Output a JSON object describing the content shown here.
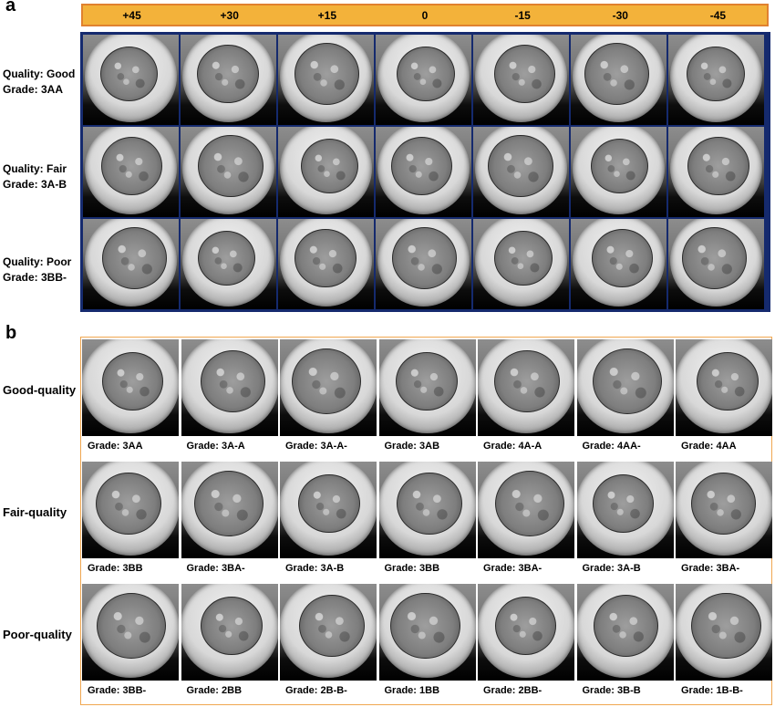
{
  "panel_a": {
    "letter": "a",
    "angles": [
      "+45",
      "+30",
      "+15",
      "0",
      "-15",
      "-30",
      "-45"
    ],
    "rows": [
      {
        "quality": "Quality: Good",
        "grade": "Grade: 3AA"
      },
      {
        "quality": "Quality: Fair",
        "grade": "Grade: 3A-B"
      },
      {
        "quality": "Quality: Poor",
        "grade": "Grade: 3BB-"
      }
    ]
  },
  "panel_b": {
    "letter": "b",
    "rows": [
      {
        "label": "Good-quality",
        "grades": [
          "Grade: 3AA",
          "Grade: 3A-A",
          "Grade: 3A-A-",
          "Grade: 3AB",
          "Grade: 4A-A",
          "Grade: 4AA-",
          "Grade: 4AA"
        ]
      },
      {
        "label": "Fair-quality",
        "grades": [
          "Grade: 3BB",
          "Grade: 3BA-",
          "Grade: 3A-B",
          "Grade: 3BB",
          "Grade: 3BA-",
          "Grade: 3A-B",
          "Grade: 3BA-"
        ]
      },
      {
        "label": "Poor-quality",
        "grades": [
          "Grade: 3BB-",
          "Grade: 2BB",
          "Grade: 2B-B-",
          "Grade: 1BB",
          "Grade: 2BB-",
          "Grade: 3B-B",
          "Grade: 1B-B-"
        ]
      }
    ]
  },
  "colors": {
    "angle_bar_fill": "#f3b23a",
    "angle_bar_border": "#e0812f",
    "grid_a_border": "#152a6e",
    "frame_b_border": "#f0a750"
  }
}
